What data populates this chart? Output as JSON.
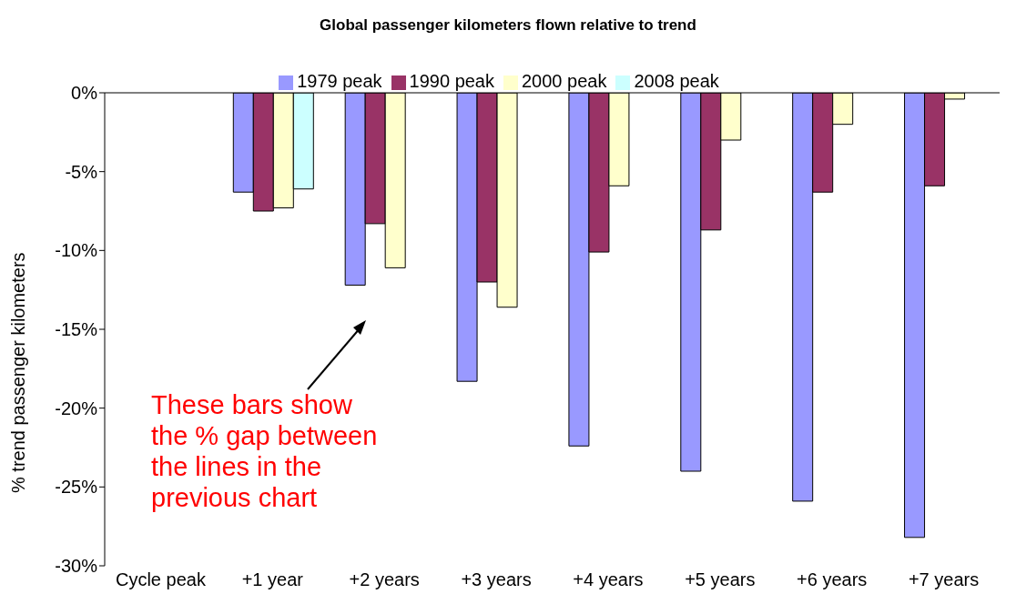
{
  "chart_data": {
    "type": "bar",
    "title": "Global passenger kilometers flown relative to trend",
    "ylabel": "% trend passenger kilometers",
    "categories": [
      "Cycle peak",
      "+1 year",
      "+2 years",
      "+3 years",
      "+4 years",
      "+5 years",
      "+6 years",
      "+7 years"
    ],
    "series": [
      {
        "name": "1979 peak",
        "color": "#9999ff",
        "values": [
          0,
          -6.3,
          -12.2,
          -18.3,
          -22.4,
          -24.0,
          -25.9,
          -28.2
        ]
      },
      {
        "name": "1990 peak",
        "color": "#993366",
        "values": [
          0,
          -7.5,
          -8.3,
          -12.0,
          -10.1,
          -8.7,
          -6.3,
          -5.9
        ]
      },
      {
        "name": "2000 peak",
        "color": "#ffffcc",
        "values": [
          0,
          -7.3,
          -11.1,
          -13.6,
          -5.9,
          -3.0,
          -2.0,
          -0.4
        ]
      },
      {
        "name": "2008 peak",
        "color": "#ccffff",
        "values": [
          0,
          -6.1,
          null,
          null,
          null,
          null,
          null,
          null
        ]
      }
    ],
    "ylim": [
      -30,
      0
    ],
    "yticks": [
      {
        "value": -30,
        "label": "-30%"
      },
      {
        "value": -25,
        "label": "-25%"
      },
      {
        "value": -20,
        "label": "-20%"
      },
      {
        "value": -15,
        "label": "-15%"
      },
      {
        "value": -10,
        "label": "-10%"
      },
      {
        "value": -5,
        "label": "-5%"
      },
      {
        "value": 0,
        "label": "0%"
      }
    ],
    "legend": "top",
    "annotations": [
      "These bars show the % gap between the lines in the previous chart"
    ]
  }
}
